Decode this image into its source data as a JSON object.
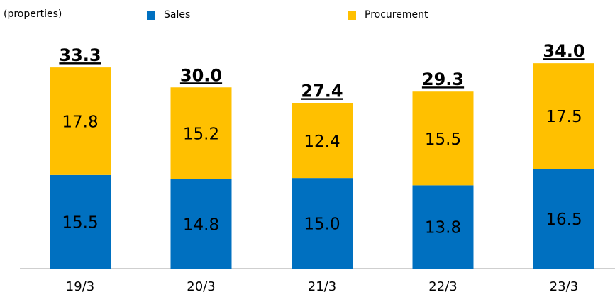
{
  "chart_data": {
    "type": "stacked-bar",
    "unit_label": "(properties)",
    "categories": [
      "19/3",
      "20/3",
      "21/3",
      "22/3",
      "23/3"
    ],
    "series": [
      {
        "name": "Sales",
        "color": "#0070c0",
        "values": [
          15.5,
          14.8,
          15,
          13.8,
          16.5
        ],
        "value_labels": [
          "15.5",
          "14.8",
          "15.0",
          "13.8",
          "16.5"
        ]
      },
      {
        "name": "Procurement",
        "color": "#ffc000",
        "values": [
          17.8,
          15.2,
          12.4,
          15.5,
          17.5
        ],
        "value_labels": [
          "17.8",
          "15.2",
          "12.4",
          "15.5",
          "17.5"
        ]
      }
    ],
    "totals": {
      "values": [
        33.3,
        30,
        27.4,
        29.3,
        34
      ],
      "value_labels": [
        "33.3",
        "30.0",
        "27.4",
        "29.3",
        "34.0"
      ]
    },
    "ylim": [
      0,
      40
    ]
  }
}
